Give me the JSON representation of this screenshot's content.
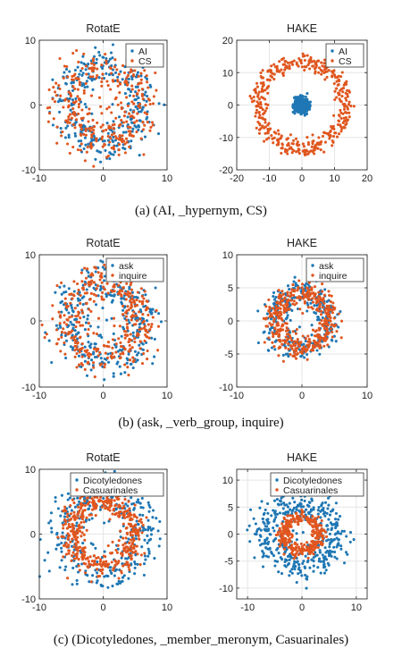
{
  "captions": [
    "(a) (AI, _hypernym, CS)",
    "(b) (ask, _verb_group, inquire)",
    "(c) (Dicotyledones, _member_meronym, Casuarinales)"
  ],
  "colors": {
    "series1": "#1f77b4",
    "series2": "#e0561f"
  },
  "chart_data": [
    {
      "type": "scatter",
      "title": "RotatE",
      "legend": "top-right",
      "xlim": [
        -10,
        10
      ],
      "ylim": [
        -10,
        10
      ],
      "xticks": [
        -10,
        0,
        10
      ],
      "yticks": [
        -10,
        0,
        10
      ],
      "grid": true,
      "series": [
        {
          "name": "AI",
          "distribution": {
            "radius_mean": 6.0,
            "radius_sd": 1.3,
            "count": 330
          }
        },
        {
          "name": "CS",
          "distribution": {
            "radius_mean": 5.6,
            "radius_sd": 1.8,
            "count": 330
          }
        }
      ]
    },
    {
      "type": "scatter",
      "title": "HAKE",
      "legend": "top-right",
      "xlim": [
        -20,
        20
      ],
      "ylim": [
        -20,
        20
      ],
      "xticks": [
        -20,
        -10,
        0,
        10,
        20
      ],
      "yticks": [
        -20,
        -10,
        0,
        10,
        20
      ],
      "grid": true,
      "series": [
        {
          "name": "AI",
          "distribution": {
            "radius_mean": 1.7,
            "radius_sd": 0.7,
            "count": 300
          }
        },
        {
          "name": "CS",
          "distribution": {
            "radius_mean": 13.2,
            "radius_sd": 1.3,
            "count": 420
          }
        }
      ]
    },
    {
      "type": "scatter",
      "title": "RotatE",
      "legend": "top-right",
      "xlim": [
        -10,
        10
      ],
      "ylim": [
        -10,
        10
      ],
      "xticks": [
        -10,
        0,
        10
      ],
      "yticks": [
        -10,
        0,
        10
      ],
      "grid": true,
      "series": [
        {
          "name": "ask",
          "distribution": {
            "radius_mean": 5.9,
            "radius_sd": 1.6,
            "count": 320
          }
        },
        {
          "name": "inquire",
          "distribution": {
            "radius_mean": 5.6,
            "radius_sd": 1.6,
            "count": 360
          }
        }
      ]
    },
    {
      "type": "scatter",
      "title": "HAKE",
      "legend": "top-right",
      "xlim": [
        -10,
        10
      ],
      "ylim": [
        -10,
        10
      ],
      "xticks": [
        -10,
        0,
        10
      ],
      "yticks": [
        -10,
        -5,
        0,
        5,
        10
      ],
      "grid": true,
      "series": [
        {
          "name": "ask",
          "distribution": {
            "radius_mean": 4.3,
            "radius_sd": 1.0,
            "count": 300
          }
        },
        {
          "name": "inquire",
          "distribution": {
            "radius_mean": 4.2,
            "radius_sd": 0.9,
            "count": 420
          }
        }
      ]
    },
    {
      "type": "scatter",
      "title": "RotatE",
      "legend": "top-right",
      "xlim": [
        -10,
        10
      ],
      "ylim": [
        -10,
        10
      ],
      "xticks": [
        -10,
        0,
        10
      ],
      "yticks": [
        -10,
        0,
        10
      ],
      "grid": true,
      "series": [
        {
          "name": "Dicotyledones",
          "distribution": {
            "radius_mean": 6.2,
            "radius_sd": 1.6,
            "count": 330
          }
        },
        {
          "name": "Casuarinales",
          "distribution": {
            "radius_mean": 5.0,
            "radius_sd": 1.0,
            "count": 450
          }
        }
      ]
    },
    {
      "type": "scatter",
      "title": "HAKE",
      "legend": "top-right",
      "xlim": [
        -12,
        12
      ],
      "ylim": [
        -12,
        12
      ],
      "xticks": [
        -10,
        0,
        10
      ],
      "yticks": [
        -10,
        -5,
        0,
        5,
        10
      ],
      "grid": true,
      "series": [
        {
          "name": "Dicotyledones",
          "distribution": {
            "radius_mean": 6.0,
            "radius_sd": 1.8,
            "count": 420
          }
        },
        {
          "name": "Casuarinales",
          "distribution": {
            "radius_mean": 3.2,
            "radius_sd": 0.6,
            "count": 320
          }
        }
      ]
    }
  ]
}
